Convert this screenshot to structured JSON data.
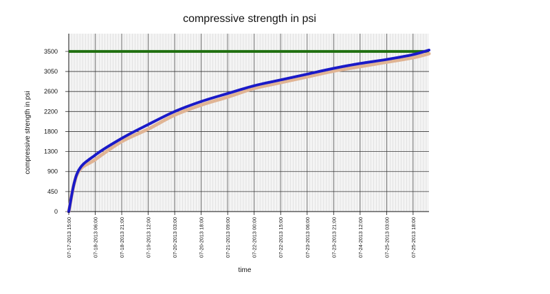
{
  "chart_data": {
    "type": "line",
    "title": "compressive strength in psi",
    "xlabel": "time",
    "ylabel": "compressive strength in psi",
    "y_ticks": [
      0,
      450,
      900,
      1300,
      1800,
      2200,
      2600,
      3050,
      3500
    ],
    "x_tick_labels": [
      "07-17-2013 15:00",
      "07-18-2013 06:00",
      "07-18-2013 21:00",
      "07-19-2013 12:00",
      "07-20-2013 03:00",
      "07-20-2013 18:00",
      "07-21-2013 09:00",
      "07-22-2013 00:00",
      "07-22-2013 15:00",
      "07-23-2013 06:00",
      "07-23-2013 21:00",
      "07-24-2013 12:00",
      "07-25-2013 03:00",
      "07-25-2013 18:00"
    ],
    "x_range": [
      "07-17-2013 15:00",
      "07-26-2013 03:00"
    ],
    "grid": true,
    "colors": {
      "threshold": "#1f6f0f",
      "blue_series": "#1a1ac8",
      "tan_series": "#e0b494"
    },
    "threshold": 3500,
    "series": [
      {
        "color": "#e0b494",
        "x": [
          "07-17-2013 15:00",
          "07-17-2013 20:00",
          "07-18-2013 06:00",
          "07-18-2013 21:00",
          "07-19-2013 12:00",
          "07-20-2013 03:00",
          "07-20-2013 18:00",
          "07-21-2013 09:00",
          "07-22-2013 00:00",
          "07-22-2013 15:00",
          "07-23-2013 06:00",
          "07-23-2013 21:00",
          "07-24-2013 12:00",
          "07-25-2013 03:00",
          "07-25-2013 18:00",
          "07-26-2013 03:00"
        ],
        "values": [
          0,
          860,
          1140,
          1550,
          1850,
          2130,
          2330,
          2490,
          2670,
          2800,
          2930,
          3060,
          3160,
          3260,
          3360,
          3450
        ]
      },
      {
        "color": "#1a1ac8",
        "x": [
          "07-17-2013 15:00",
          "07-17-2013 20:00",
          "07-18-2013 06:00",
          "07-18-2013 21:00",
          "07-19-2013 12:00",
          "07-20-2013 03:00",
          "07-20-2013 18:00",
          "07-21-2013 09:00",
          "07-22-2013 00:00",
          "07-22-2013 15:00",
          "07-23-2013 06:00",
          "07-23-2013 21:00",
          "07-24-2013 12:00",
          "07-25-2013 03:00",
          "07-25-2013 18:00",
          "07-26-2013 03:00"
        ],
        "values": [
          0,
          880,
          1230,
          1630,
          1940,
          2200,
          2400,
          2560,
          2730,
          2860,
          2990,
          3120,
          3230,
          3320,
          3430,
          3530
        ]
      }
    ]
  }
}
